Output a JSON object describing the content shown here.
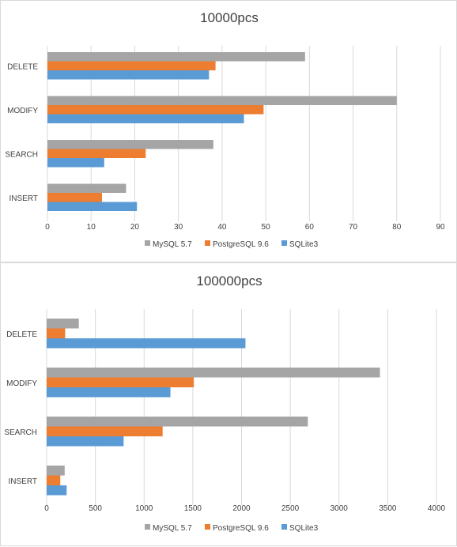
{
  "chart_data": [
    {
      "type": "bar",
      "orientation": "horizontal",
      "title": "10000pcs",
      "categories": [
        "DELETE",
        "MODIFY",
        "SEARCH",
        "INSERT"
      ],
      "series": [
        {
          "name": "MySQL 5.7",
          "color": "#a5a5a5",
          "values": [
            59,
            80,
            38,
            18
          ]
        },
        {
          "name": "PostgreSQL 9.6",
          "color": "#ed7d31",
          "values": [
            38.5,
            49.5,
            22.5,
            12.5
          ]
        },
        {
          "name": "SQLite3",
          "color": "#5b9bd5",
          "values": [
            37,
            45,
            13,
            20.5
          ]
        }
      ],
      "xlim": [
        0,
        90
      ],
      "ticks": [
        "0",
        "10",
        "20",
        "30",
        "40",
        "50",
        "60",
        "70",
        "80",
        "90"
      ],
      "grid": true,
      "legend_position": "bottom"
    },
    {
      "type": "bar",
      "orientation": "horizontal",
      "title": "100000pcs",
      "categories": [
        "DELETE",
        "MODIFY",
        "SEARCH",
        "INSERT"
      ],
      "series": [
        {
          "name": "MySQL 5.7",
          "color": "#a5a5a5",
          "values": [
            330,
            3420,
            2680,
            185
          ]
        },
        {
          "name": "PostgreSQL 9.6",
          "color": "#ed7d31",
          "values": [
            190,
            1510,
            1190,
            140
          ]
        },
        {
          "name": "SQLite3",
          "color": "#5b9bd5",
          "values": [
            2040,
            1270,
            790,
            205
          ]
        }
      ],
      "xlim": [
        0,
        4000
      ],
      "ticks": [
        "0",
        "500",
        "1000",
        "1500",
        "2000",
        "2500",
        "3000",
        "3500",
        "4000"
      ],
      "grid": true,
      "legend_position": "bottom"
    }
  ]
}
